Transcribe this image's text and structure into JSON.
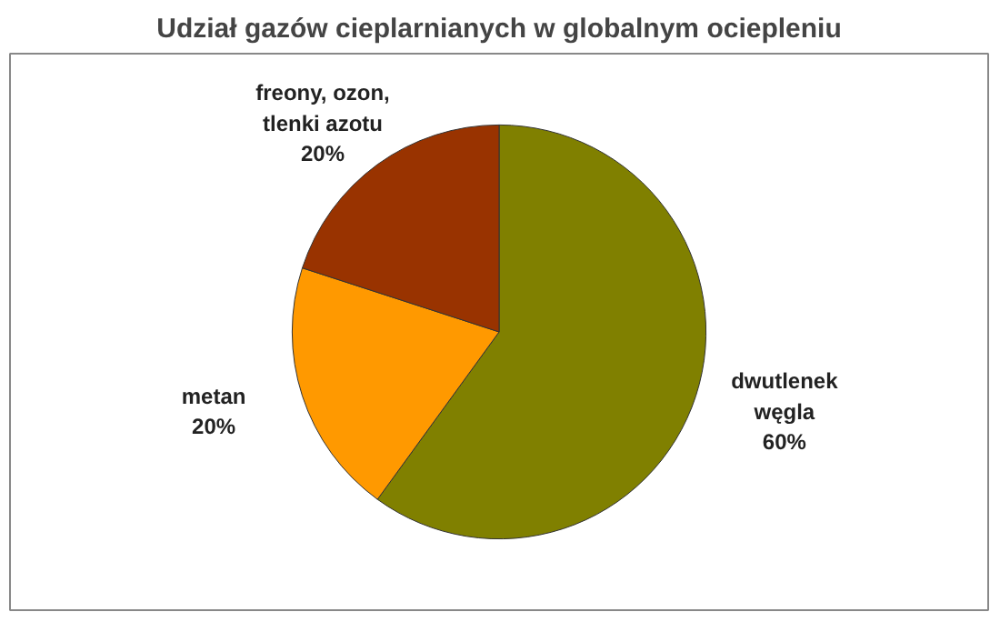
{
  "chart_data": {
    "type": "pie",
    "title": "Udział gazów cieplarnianych w globalnym ociepleniu",
    "categories": [
      "dwutlenek\nwęgla",
      "metan",
      "freony, ozon,\ntlenki azotu"
    ],
    "values": [
      60,
      20,
      20
    ],
    "value_labels": [
      "60%",
      "20%",
      "20%"
    ],
    "colors": [
      "#808000",
      "#ff9900",
      "#993300"
    ]
  }
}
